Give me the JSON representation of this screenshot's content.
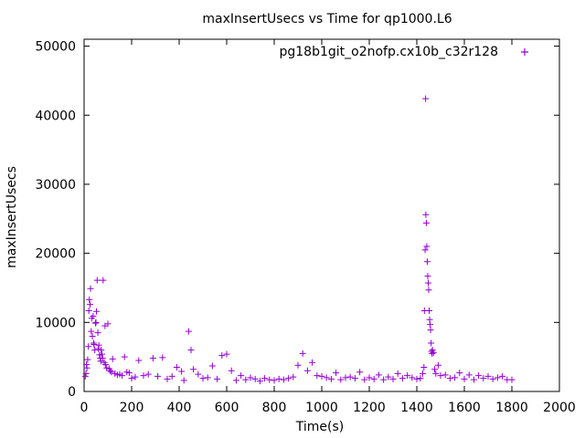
{
  "chart_data": {
    "type": "scatter",
    "title": "maxInsertUsecs vs Time for qp1000.L6",
    "xlabel": "Time(s)",
    "ylabel": "maxInsertUsecs",
    "xlim": [
      0,
      2000
    ],
    "ylim": [
      0,
      51000
    ],
    "xticks": [
      0,
      200,
      400,
      600,
      800,
      1000,
      1200,
      1400,
      1600,
      1800,
      2000
    ],
    "yticks": [
      0,
      10000,
      20000,
      30000,
      40000,
      50000
    ],
    "xtick_labels": [
      "0",
      "200",
      "400",
      "600",
      "800",
      "1000",
      "1200",
      "1400",
      "1600",
      "1800",
      "2000"
    ],
    "ytick_labels": [
      "0",
      "10000",
      "20000",
      "30000",
      "40000",
      "50000"
    ],
    "grid": false,
    "legend_position": "top-right",
    "marker": "+",
    "color": "#9400d3",
    "series": [
      {
        "name": "pg18b1git_o2nofp.cx10b_c32r128",
        "points": [
          [
            5,
            2200
          ],
          [
            8,
            2600
          ],
          [
            10,
            3900
          ],
          [
            12,
            3400
          ],
          [
            15,
            4600
          ],
          [
            18,
            6500
          ],
          [
            20,
            11700
          ],
          [
            22,
            13300
          ],
          [
            25,
            12600
          ],
          [
            27,
            14900
          ],
          [
            30,
            8700
          ],
          [
            32,
            10600
          ],
          [
            35,
            8000
          ],
          [
            38,
            10900
          ],
          [
            40,
            7000
          ],
          [
            42,
            6800
          ],
          [
            45,
            6000
          ],
          [
            48,
            9900
          ],
          [
            50,
            10000
          ],
          [
            52,
            11600
          ],
          [
            55,
            16100
          ],
          [
            58,
            8500
          ],
          [
            60,
            6200
          ],
          [
            62,
            6700
          ],
          [
            65,
            5300
          ],
          [
            68,
            4800
          ],
          [
            70,
            4400
          ],
          [
            72,
            6000
          ],
          [
            75,
            5400
          ],
          [
            78,
            4800
          ],
          [
            80,
            16100
          ],
          [
            85,
            4200
          ],
          [
            88,
            9500
          ],
          [
            90,
            3900
          ],
          [
            95,
            3400
          ],
          [
            100,
            9800
          ],
          [
            105,
            3300
          ],
          [
            110,
            3000
          ],
          [
            115,
            2800
          ],
          [
            120,
            4700
          ],
          [
            130,
            2600
          ],
          [
            140,
            2400
          ],
          [
            150,
            2500
          ],
          [
            160,
            2300
          ],
          [
            170,
            5000
          ],
          [
            180,
            2800
          ],
          [
            190,
            2700
          ],
          [
            200,
            1900
          ],
          [
            215,
            2100
          ],
          [
            230,
            4500
          ],
          [
            250,
            2300
          ],
          [
            270,
            2500
          ],
          [
            290,
            4800
          ],
          [
            310,
            2200
          ],
          [
            330,
            4900
          ],
          [
            350,
            1800
          ],
          [
            370,
            2200
          ],
          [
            390,
            3500
          ],
          [
            410,
            2900
          ],
          [
            420,
            1600
          ],
          [
            440,
            8700
          ],
          [
            450,
            6000
          ],
          [
            460,
            3200
          ],
          [
            480,
            2500
          ],
          [
            500,
            1900
          ],
          [
            520,
            2000
          ],
          [
            540,
            3700
          ],
          [
            560,
            1800
          ],
          [
            580,
            5200
          ],
          [
            600,
            5400
          ],
          [
            620,
            3000
          ],
          [
            640,
            1600
          ],
          [
            660,
            2300
          ],
          [
            680,
            1700
          ],
          [
            700,
            2000
          ],
          [
            720,
            1800
          ],
          [
            740,
            1500
          ],
          [
            760,
            1900
          ],
          [
            780,
            1700
          ],
          [
            800,
            1600
          ],
          [
            820,
            1800
          ],
          [
            840,
            1700
          ],
          [
            860,
            1900
          ],
          [
            880,
            2100
          ],
          [
            900,
            3800
          ],
          [
            920,
            5500
          ],
          [
            940,
            3000
          ],
          [
            960,
            4200
          ],
          [
            980,
            2300
          ],
          [
            1000,
            2200
          ],
          [
            1020,
            2000
          ],
          [
            1040,
            1800
          ],
          [
            1060,
            2700
          ],
          [
            1080,
            1700
          ],
          [
            1100,
            2000
          ],
          [
            1120,
            2100
          ],
          [
            1140,
            1900
          ],
          [
            1160,
            2800
          ],
          [
            1180,
            1700
          ],
          [
            1200,
            2000
          ],
          [
            1220,
            1800
          ],
          [
            1240,
            2400
          ],
          [
            1260,
            1700
          ],
          [
            1280,
            2100
          ],
          [
            1300,
            1800
          ],
          [
            1320,
            2600
          ],
          [
            1340,
            1900
          ],
          [
            1360,
            2300
          ],
          [
            1380,
            2000
          ],
          [
            1400,
            1800
          ],
          [
            1415,
            1900
          ],
          [
            1425,
            2600
          ],
          [
            1430,
            3500
          ],
          [
            1432,
            11700
          ],
          [
            1435,
            20500
          ],
          [
            1437,
            42400
          ],
          [
            1438,
            25600
          ],
          [
            1440,
            24400
          ],
          [
            1442,
            21000
          ],
          [
            1444,
            18800
          ],
          [
            1446,
            16700
          ],
          [
            1448,
            15700
          ],
          [
            1450,
            14700
          ],
          [
            1452,
            11700
          ],
          [
            1454,
            10400
          ],
          [
            1456,
            9700
          ],
          [
            1458,
            8900
          ],
          [
            1460,
            7000
          ],
          [
            1462,
            5800
          ],
          [
            1464,
            5500
          ],
          [
            1466,
            6000
          ],
          [
            1470,
            5600
          ],
          [
            1475,
            3200
          ],
          [
            1480,
            2600
          ],
          [
            1490,
            3800
          ],
          [
            1500,
            2300
          ],
          [
            1520,
            2400
          ],
          [
            1540,
            1900
          ],
          [
            1560,
            2000
          ],
          [
            1580,
            2700
          ],
          [
            1600,
            1800
          ],
          [
            1620,
            2400
          ],
          [
            1640,
            1700
          ],
          [
            1660,
            2300
          ],
          [
            1680,
            1900
          ],
          [
            1700,
            2200
          ],
          [
            1720,
            1800
          ],
          [
            1740,
            2000
          ],
          [
            1760,
            2200
          ],
          [
            1780,
            1700
          ],
          [
            1800,
            1700
          ]
        ]
      }
    ]
  }
}
